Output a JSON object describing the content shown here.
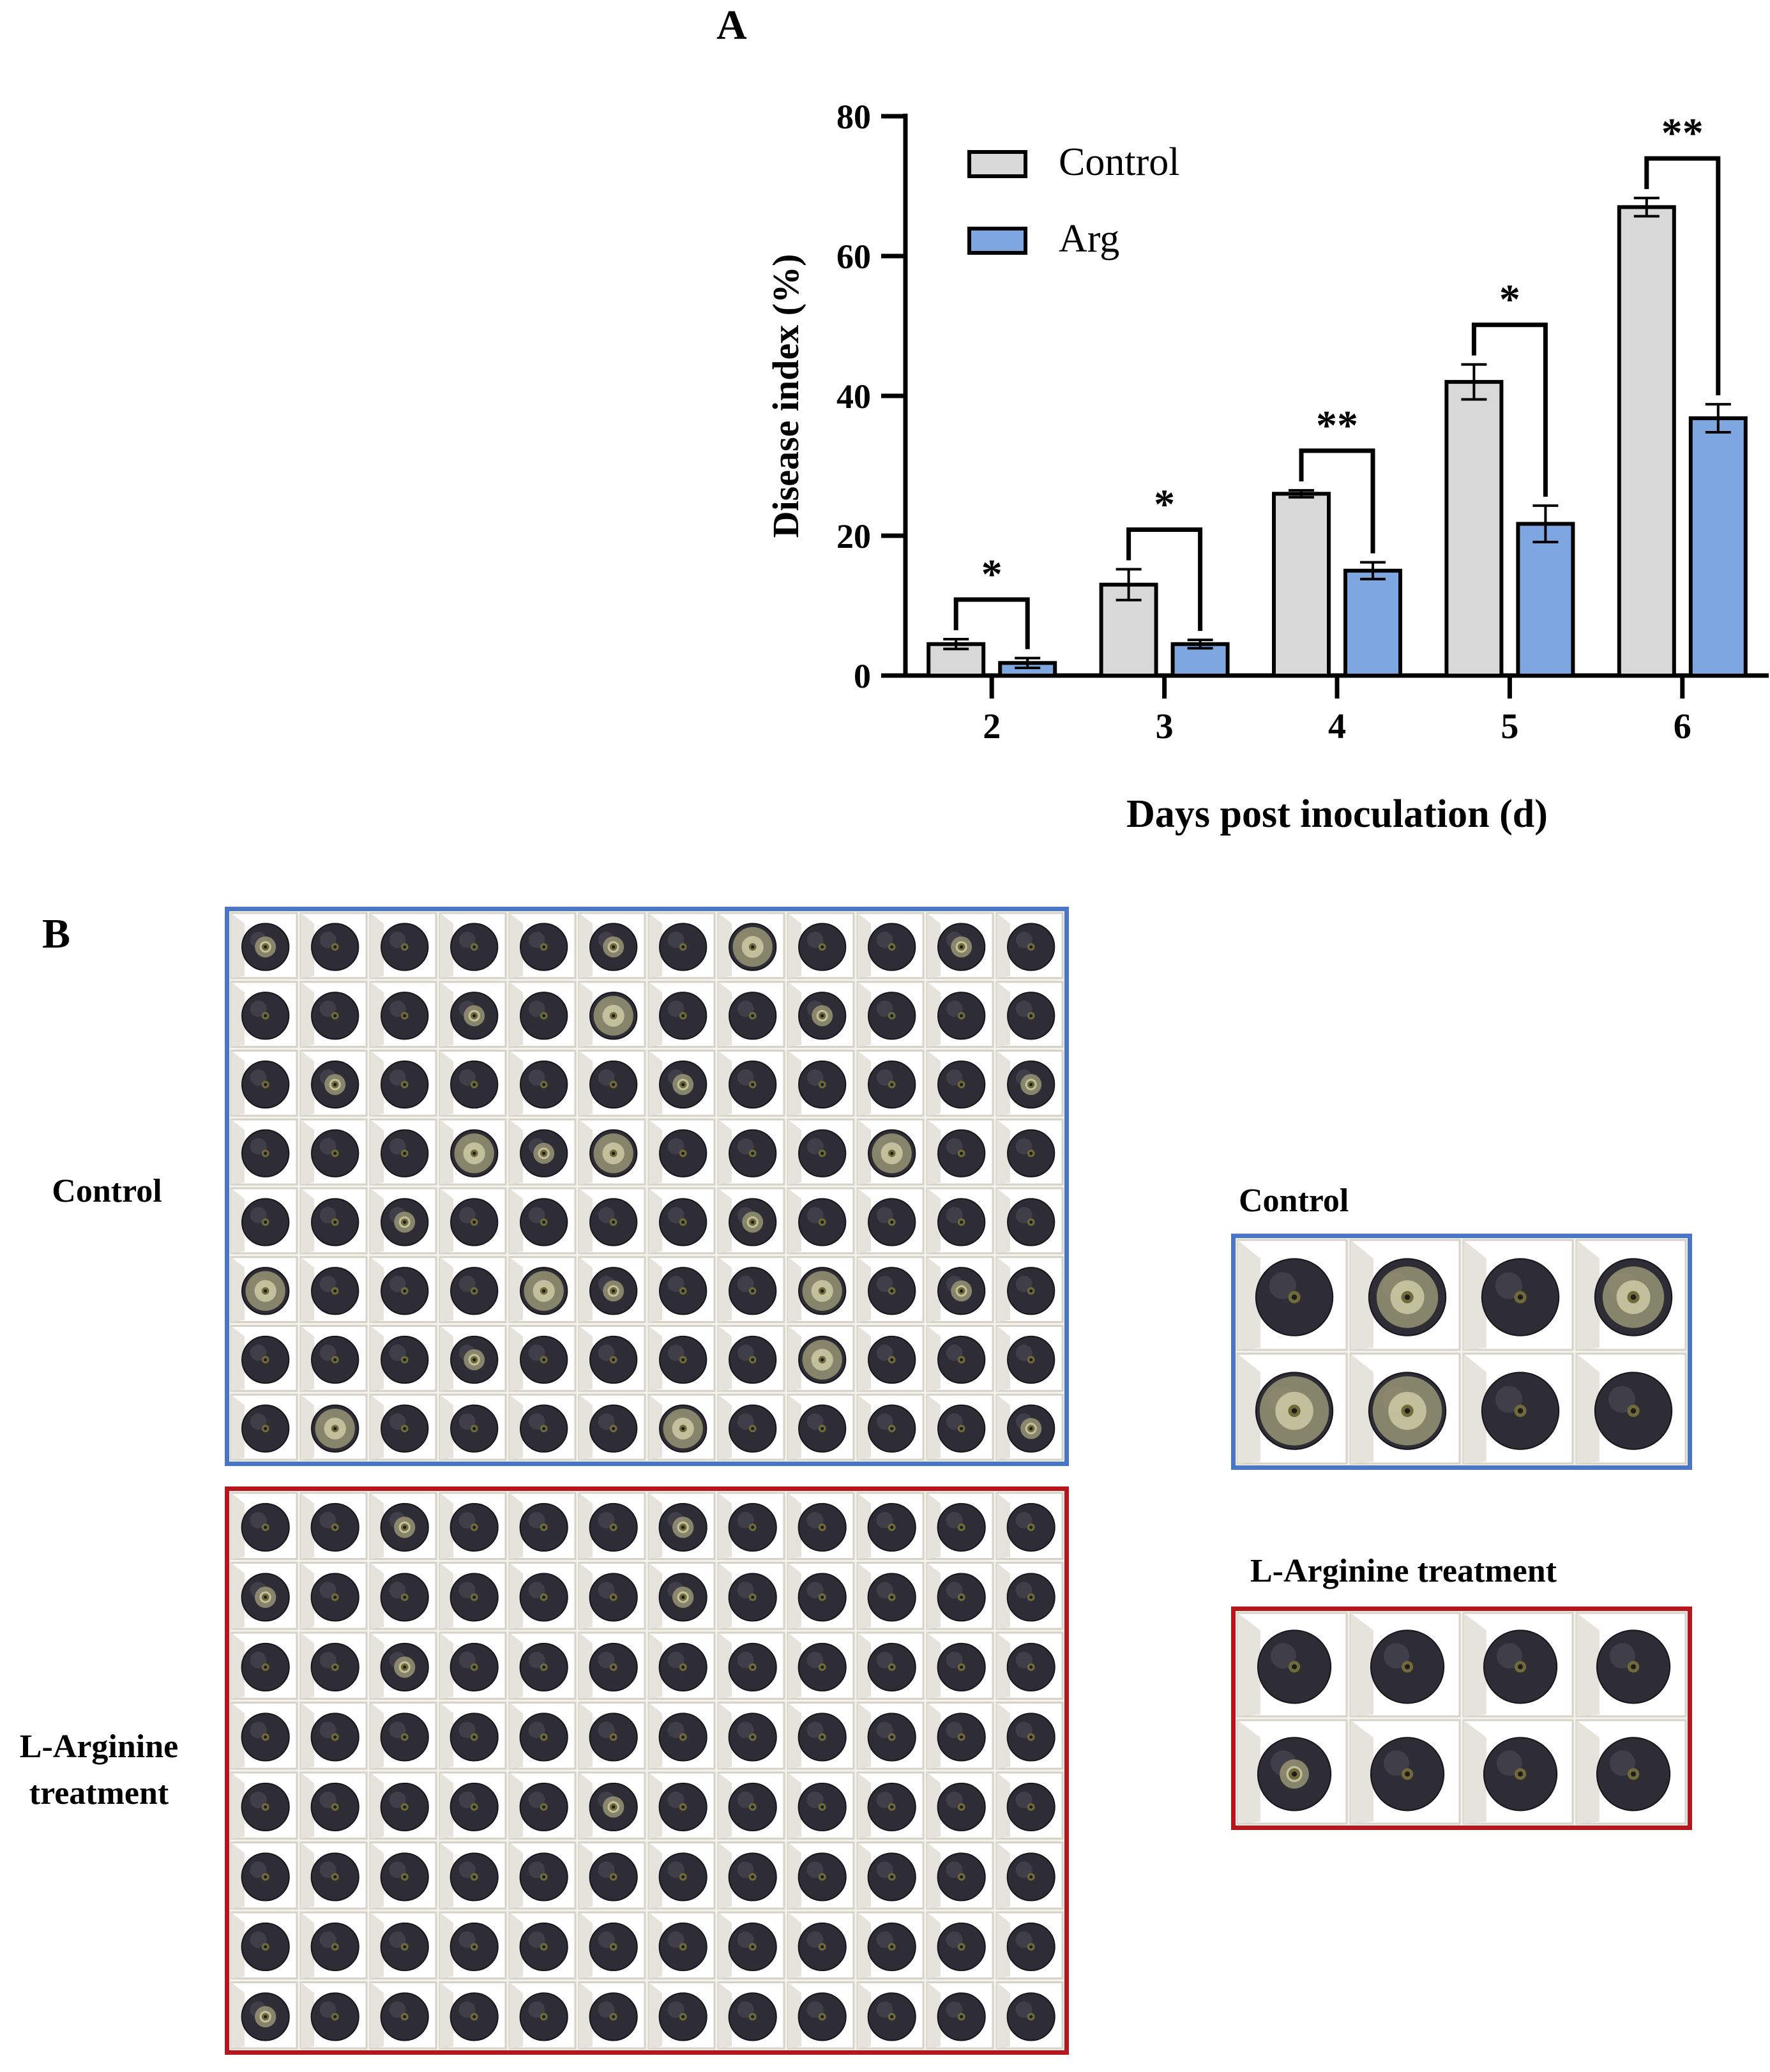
{
  "panel_a": {
    "label": "A"
  },
  "panel_b": {
    "label": "B",
    "grid_labels": {
      "control": "Control",
      "arginine": "L-Arginine treatment"
    },
    "inset_labels": {
      "control": "Control",
      "arginine": "L-Arginine treatment"
    }
  },
  "colors": {
    "control_bar": "#d8d8d8",
    "arg_bar": "#7ea6e0",
    "control_frame": "#4a76c8",
    "arg_frame": "#b5171c"
  },
  "chart_data": {
    "type": "bar",
    "title": "",
    "xlabel": "Days post inoculation (d)",
    "ylabel": "Disease index (%)",
    "ylim": [
      0,
      80
    ],
    "yticks": [
      "0",
      "20",
      "40",
      "60",
      "80"
    ],
    "categories": [
      "2",
      "3",
      "4",
      "5",
      "6"
    ],
    "series": [
      {
        "name": "Control",
        "values": [
          4.5,
          13.0,
          26.0,
          42.0,
          67.0
        ],
        "errors": [
          0.7,
          2.2,
          0.5,
          2.5,
          1.3
        ]
      },
      {
        "name": "Arg",
        "values": [
          1.8,
          4.5,
          15.0,
          21.7,
          36.8
        ],
        "errors": [
          0.7,
          0.6,
          1.2,
          2.6,
          2.0
        ]
      }
    ],
    "significance": [
      "*",
      "*",
      "**",
      "*",
      "**"
    ],
    "legend_position": "top-left"
  }
}
